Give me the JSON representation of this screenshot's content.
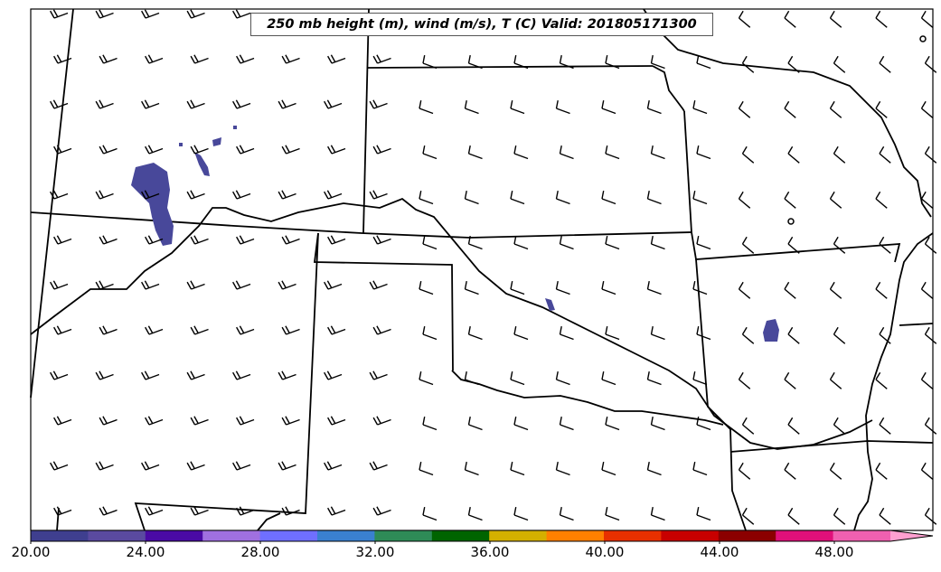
{
  "title": "250 mb height (m), wind (m/s), T (C) Valid: 201805171300",
  "colorbar": {
    "tick_labels": [
      "20.00",
      "24.00",
      "28.00",
      "32.00",
      "36.00",
      "40.00",
      "44.00",
      "48.00"
    ],
    "colors": [
      "#3f3f8f",
      "#5a4aa0",
      "#4a0aa5",
      "#a070e0",
      "#6f6fff",
      "#3a80d0",
      "#2e8b57",
      "#006400",
      "#d4b000",
      "#ff8000",
      "#e83000",
      "#c80000",
      "#8b0000",
      "#e0107a",
      "#f060b0",
      "#ffa0d0"
    ]
  },
  "shaded_color": "#48489a",
  "wind_barbs_icon": "wind-barb-icon"
}
